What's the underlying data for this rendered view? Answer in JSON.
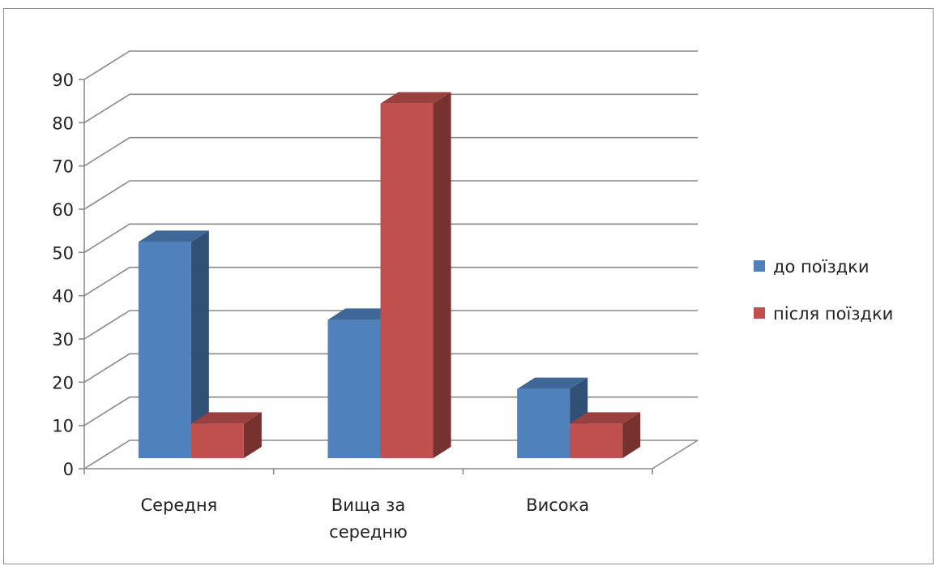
{
  "chart_data": {
    "type": "bar",
    "style": "3d-clustered",
    "categories": [
      "Середня",
      "Вища за\nсередню",
      "Висока"
    ],
    "series": [
      {
        "name": "до поїздки",
        "values": [
          50,
          32,
          16
        ],
        "color": "#4f81bd"
      },
      {
        "name": "після поїздки",
        "values": [
          8,
          82,
          8
        ],
        "color": "#c0504d"
      }
    ],
    "title": "",
    "xlabel": "",
    "ylabel": "",
    "ylim": [
      0,
      90
    ],
    "yticks": [
      0,
      10,
      20,
      30,
      40,
      50,
      60,
      70,
      80,
      90
    ],
    "grid": true,
    "legend": "right"
  }
}
